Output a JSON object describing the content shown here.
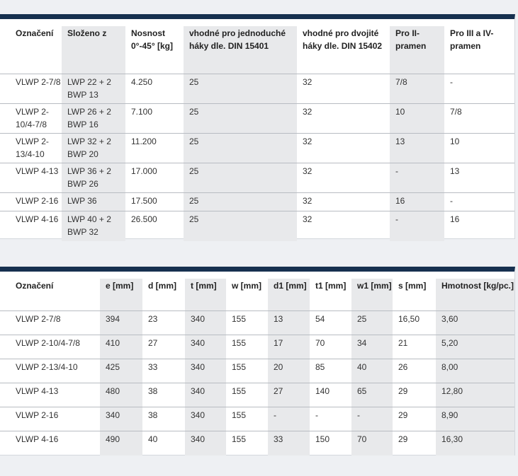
{
  "table1": {
    "headers": [
      "Označení",
      "Složeno z",
      "Nosnost 0°-45° [kg]",
      "vhodné pro jednoduché háky dle. DIN 15401",
      "vhodné pro dvojité háky dle. DIN 15402",
      "Pro II-pramen",
      "Pro III a IV-pramen"
    ],
    "rows": [
      [
        "VLWP 2-7/8",
        "LWP 22 + 2 BWP 13",
        "4.250",
        "25",
        "32",
        "7/8",
        "-"
      ],
      [
        "VLWP 2-10/4-7/8",
        "LWP 26 + 2 BWP 16",
        "7.100",
        "25",
        "32",
        "10",
        "7/8"
      ],
      [
        "VLWP 2-13/4-10",
        "LWP 32 + 2 BWP 20",
        "11.200",
        "25",
        "32",
        "13",
        "10"
      ],
      [
        "VLWP 4-13",
        "LWP 36 + 2 BWP 26",
        "17.000",
        "25",
        "32",
        "-",
        "13"
      ],
      [
        "VLWP 2-16",
        "LWP 36",
        "17.500",
        "25",
        "32",
        "16",
        "-"
      ],
      [
        "VLWP 4-16",
        "LWP 40 + 2 BWP 32",
        "26.500",
        "25",
        "32",
        "-",
        "16"
      ]
    ]
  },
  "table2": {
    "headers": [
      "Označení",
      "e [mm]",
      "d [mm]",
      "t [mm]",
      "w [mm]",
      "d1 [mm]",
      "t1 [mm]",
      "w1 [mm]",
      "s [mm]",
      "Hmotnost [kg/pc.]"
    ],
    "rows": [
      [
        "VLWP 2-7/8",
        "394",
        "23",
        "340",
        "155",
        "13",
        "54",
        "25",
        "16,50",
        "3,60"
      ],
      [
        "VLWP 2-10/4-7/8",
        "410",
        "27",
        "340",
        "155",
        "17",
        "70",
        "34",
        "21",
        "5,20"
      ],
      [
        "VLWP 2-13/4-10",
        "425",
        "33",
        "340",
        "155",
        "20",
        "85",
        "40",
        "26",
        "8,00"
      ],
      [
        "VLWP 4-13",
        "480",
        "38",
        "340",
        "155",
        "27",
        "140",
        "65",
        "29",
        "12,80"
      ],
      [
        "VLWP 2-16",
        "340",
        "38",
        "340",
        "155",
        "-",
        "-",
        "-",
        "29",
        "8,90"
      ],
      [
        "VLWP 4-16",
        "490",
        "40",
        "340",
        "155",
        "33",
        "150",
        "70",
        "29",
        "16,30"
      ]
    ]
  },
  "colors": {
    "header_bar": "#16304f",
    "shaded_column": "#e8e9eb",
    "page_background": "#eef0f3"
  }
}
